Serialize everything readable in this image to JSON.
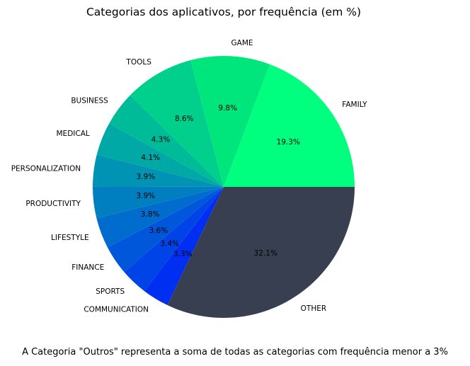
{
  "chart_data": {
    "type": "pie",
    "title": "Categorias dos aplicativos, por frequência (em %)",
    "note": "A Categoria \"Outros\" representa a soma de todas as categorias com frequência menor a 3%",
    "slices": [
      {
        "label": "FAMILY",
        "value": 19.3,
        "pct_label": "19.3%",
        "color": "#00ff7f"
      },
      {
        "label": "GAME",
        "value": 9.8,
        "pct_label": "9.8%",
        "color": "#00e67d"
      },
      {
        "label": "TOOLS",
        "value": 8.6,
        "pct_label": "8.6%",
        "color": "#00d08c"
      },
      {
        "label": "BUSINESS",
        "value": 4.3,
        "pct_label": "4.3%",
        "color": "#00bb98"
      },
      {
        "label": "MEDICAL",
        "value": 4.1,
        "pct_label": "4.1%",
        "color": "#00a8a6"
      },
      {
        "label": "PERSONALIZATION",
        "value": 3.9,
        "pct_label": "3.9%",
        "color": "#0093b3"
      },
      {
        "label": "PRODUCTIVITY",
        "value": 3.9,
        "pct_label": "3.9%",
        "color": "#007fc0"
      },
      {
        "label": "LIFESTYLE",
        "value": 3.8,
        "pct_label": "3.8%",
        "color": "#006ccd"
      },
      {
        "label": "FINANCE",
        "value": 3.6,
        "pct_label": "3.6%",
        "color": "#0057d9"
      },
      {
        "label": "SPORTS",
        "value": 3.4,
        "pct_label": "3.4%",
        "color": "#0043e6"
      },
      {
        "label": "COMMUNICATION",
        "value": 3.3,
        "pct_label": "3.3%",
        "color": "#002ff2"
      },
      {
        "label": "OTHER",
        "value": 32.1,
        "pct_label": "32.1%",
        "color": "#383f50"
      }
    ],
    "start_angle_deg": 0,
    "direction": "counterclockwise",
    "legend": "none"
  }
}
